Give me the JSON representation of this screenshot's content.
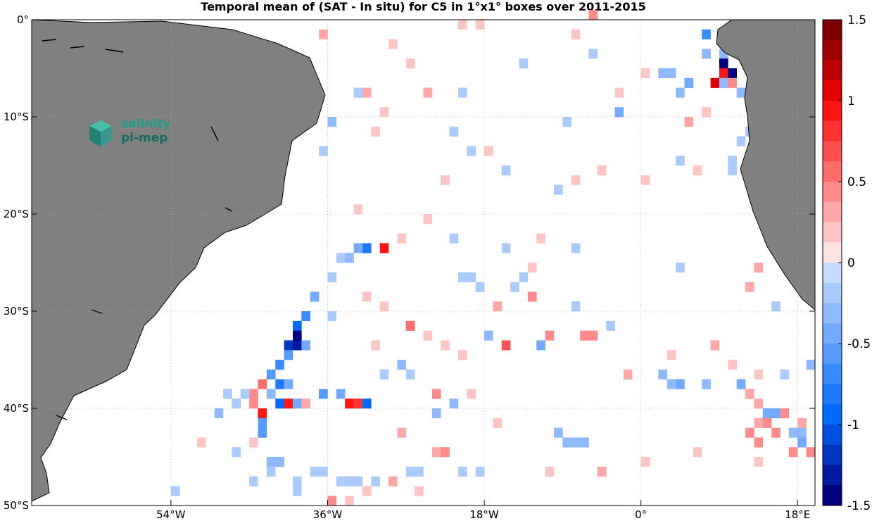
{
  "chart_data": {
    "type": "heatmap",
    "title": "Temporal mean of (SAT - In situ) for C5 in 1°x1° boxes over 2011-2015",
    "projection": "lon-lat",
    "xlim": [
      -70,
      20
    ],
    "ylim": [
      -50,
      0
    ],
    "x_ticks": [
      {
        "value": -54,
        "label": "54°W"
      },
      {
        "value": -36,
        "label": "36°W"
      },
      {
        "value": -18,
        "label": "18°W"
      },
      {
        "value": 0,
        "label": "0°"
      },
      {
        "value": 18,
        "label": "18°E"
      }
    ],
    "y_ticks": [
      {
        "value": 0,
        "label": "0°"
      },
      {
        "value": -10,
        "label": "10°S"
      },
      {
        "value": -20,
        "label": "20°S"
      },
      {
        "value": -30,
        "label": "30°S"
      },
      {
        "value": -40,
        "label": "40°S"
      },
      {
        "value": -50,
        "label": "50°S"
      }
    ],
    "grid": true,
    "colorbar": {
      "range": [
        -1.5,
        1.5
      ],
      "ticks": [
        1.5,
        1,
        0.5,
        0,
        -0.5,
        -1,
        -1.5
      ],
      "tick_labels": [
        "1.5",
        "1",
        "0.5",
        "0",
        "-0.5",
        "-1",
        "-1.5"
      ],
      "placement": "right"
    },
    "colors": {
      "land": "#808080",
      "ocean": "#ffffff",
      "positive_max": "#7f0000",
      "negative_max": "#00007f",
      "grid": "#b0b0b0"
    },
    "cells": [
      {
        "lon": -29.5,
        "lat": -23.5,
        "value": 1.0
      },
      {
        "lon": -31.5,
        "lat": -23.5,
        "value": -0.8
      },
      {
        "lon": -32.5,
        "lat": -23.5,
        "value": -0.4
      },
      {
        "lon": -33.5,
        "lat": -24.5,
        "value": -0.3
      },
      {
        "lon": -34.5,
        "lat": -24.5,
        "value": -0.2
      },
      {
        "lon": -35.5,
        "lat": -26.5,
        "value": -0.25
      },
      {
        "lon": -37.5,
        "lat": -28.5,
        "value": -0.4
      },
      {
        "lon": -35.5,
        "lat": -30.5,
        "value": -0.2
      },
      {
        "lon": -38.5,
        "lat": -30.5,
        "value": -0.7
      },
      {
        "lon": -39.5,
        "lat": -31.5,
        "value": -0.9
      },
      {
        "lon": -39.5,
        "lat": -32.5,
        "value": -1.5
      },
      {
        "lon": -40.5,
        "lat": -33.5,
        "value": -1.2
      },
      {
        "lon": -39.5,
        "lat": -33.5,
        "value": -1.3
      },
      {
        "lon": -38.5,
        "lat": -33.5,
        "value": -0.5
      },
      {
        "lon": -40.5,
        "lat": -34.5,
        "value": -0.6
      },
      {
        "lon": -41.5,
        "lat": -35.5,
        "value": -0.7
      },
      {
        "lon": -42.5,
        "lat": -36.5,
        "value": -0.6
      },
      {
        "lon": -41.5,
        "lat": -37.5,
        "value": -0.8
      },
      {
        "lon": -40.5,
        "lat": -37.5,
        "value": -0.4
      },
      {
        "lon": -43.5,
        "lat": -37.5,
        "value": 0.6
      },
      {
        "lon": -42.5,
        "lat": -38.5,
        "value": -0.3
      },
      {
        "lon": -44.5,
        "lat": -38.5,
        "value": 0.5
      },
      {
        "lon": -44.5,
        "lat": -39.5,
        "value": 0.5
      },
      {
        "lon": -41.5,
        "lat": -39.5,
        "value": -1.0
      },
      {
        "lon": -40.5,
        "lat": -39.5,
        "value": 0.9
      },
      {
        "lon": -39.5,
        "lat": -39.5,
        "value": -0.5
      },
      {
        "lon": -38.5,
        "lat": -39.5,
        "value": 0.3
      },
      {
        "lon": -36.5,
        "lat": -38.5,
        "value": -0.6
      },
      {
        "lon": -34.5,
        "lat": -38.5,
        "value": -0.5
      },
      {
        "lon": -33.5,
        "lat": -39.5,
        "value": 0.9
      },
      {
        "lon": -32.5,
        "lat": -39.5,
        "value": 0.8
      },
      {
        "lon": -31.5,
        "lat": -39.5,
        "value": -0.9
      },
      {
        "lon": -43.5,
        "lat": -40.5,
        "value": 1.0
      },
      {
        "lon": -43.5,
        "lat": -41.5,
        "value": -0.6
      },
      {
        "lon": -43.5,
        "lat": -42.5,
        "value": -0.6
      },
      {
        "lon": -26.5,
        "lat": -31.5,
        "value": 0.6
      },
      {
        "lon": -23.5,
        "lat": -38.5,
        "value": 0.4
      },
      {
        "lon": -21.5,
        "lat": -39.5,
        "value": -0.3
      },
      {
        "lon": -23.5,
        "lat": -40.5,
        "value": -0.3
      },
      {
        "lon": -15.5,
        "lat": -33.5,
        "value": 0.7
      },
      {
        "lon": -12.5,
        "lat": -28.5,
        "value": 0.5
      },
      {
        "lon": -11.5,
        "lat": -33.5,
        "value": -0.5
      },
      {
        "lon": -16.5,
        "lat": -29.5,
        "value": 0.3
      },
      {
        "lon": -10.5,
        "lat": -32.5,
        "value": 0.4
      },
      {
        "lon": -6.5,
        "lat": -32.5,
        "value": 0.5
      },
      {
        "lon": -5.5,
        "lat": -32.5,
        "value": 0.4
      },
      {
        "lon": -17.5,
        "lat": -32.5,
        "value": -0.3
      },
      {
        "lon": -8.5,
        "lat": -43.5,
        "value": -0.3
      },
      {
        "lon": -7.5,
        "lat": -43.5,
        "value": -0.3
      },
      {
        "lon": -6.5,
        "lat": -43.5,
        "value": -0.3
      },
      {
        "lon": -9.5,
        "lat": -42.5,
        "value": -0.3
      },
      {
        "lon": -1.5,
        "lat": -36.5,
        "value": 0.3
      },
      {
        "lon": 2.5,
        "lat": -36.5,
        "value": -0.3
      },
      {
        "lon": 3.5,
        "lat": -37.5,
        "value": -0.3
      },
      {
        "lon": 4.5,
        "lat": -37.5,
        "value": -0.4
      },
      {
        "lon": 7.5,
        "lat": -37.5,
        "value": -0.3
      },
      {
        "lon": 11.5,
        "lat": -37.5,
        "value": -0.5
      },
      {
        "lon": 12.5,
        "lat": -38.5,
        "value": 0.3
      },
      {
        "lon": 13.5,
        "lat": -39.5,
        "value": 0.3
      },
      {
        "lon": 14.5,
        "lat": -40.5,
        "value": -0.4
      },
      {
        "lon": 15.5,
        "lat": -40.5,
        "value": -0.5
      },
      {
        "lon": 16.5,
        "lat": -40.5,
        "value": 0.4
      },
      {
        "lon": 13.5,
        "lat": -41.5,
        "value": 0.3
      },
      {
        "lon": 14.5,
        "lat": -41.5,
        "value": 0.5
      },
      {
        "lon": 15.5,
        "lat": -42.5,
        "value": 0.4
      },
      {
        "lon": 12.5,
        "lat": -42.5,
        "value": 0.5
      },
      {
        "lon": 13.5,
        "lat": -43.5,
        "value": 0.4
      },
      {
        "lon": 17.5,
        "lat": -42.5,
        "value": -0.3
      },
      {
        "lon": 18.5,
        "lat": -43.5,
        "value": -0.5
      },
      {
        "lon": 18.5,
        "lat": -42.5,
        "value": -0.3
      },
      {
        "lon": 17.5,
        "lat": -44.5,
        "value": 0.5
      },
      {
        "lon": 18.5,
        "lat": -41.5,
        "value": 0.3
      },
      {
        "lon": 19.5,
        "lat": -35.5,
        "value": -0.3
      },
      {
        "lon": 7.5,
        "lat": -1.5,
        "value": -0.7
      },
      {
        "lon": 7.5,
        "lat": -3.5,
        "value": -0.3
      },
      {
        "lon": 9.5,
        "lat": -3.5,
        "value": -0.3
      },
      {
        "lon": 9.5,
        "lat": -4.5,
        "value": -1.5
      },
      {
        "lon": 9.5,
        "lat": -5.5,
        "value": 1.0
      },
      {
        "lon": 10.5,
        "lat": -5.5,
        "value": -1.5
      },
      {
        "lon": 8.5,
        "lat": -6.5,
        "value": 1.1
      },
      {
        "lon": 9.5,
        "lat": -6.5,
        "value": -0.3
      },
      {
        "lon": 10.5,
        "lat": -6.5,
        "value": 0.5
      },
      {
        "lon": 5.5,
        "lat": -6.5,
        "value": -0.4
      },
      {
        "lon": 3.5,
        "lat": -5.5,
        "value": -0.3
      },
      {
        "lon": 2.5,
        "lat": -5.5,
        "value": -0.3
      },
      {
        "lon": 4.5,
        "lat": -7.5,
        "value": -0.3
      },
      {
        "lon": 11.5,
        "lat": -7.5,
        "value": -0.3
      },
      {
        "lon": -2.5,
        "lat": -9.5,
        "value": -0.4
      },
      {
        "lon": -35.5,
        "lat": -10.5,
        "value": -0.3
      },
      {
        "lon": -8.5,
        "lat": -10.5,
        "value": -0.2
      },
      {
        "lon": 5.5,
        "lat": -10.5,
        "value": 0.3
      },
      {
        "lon": -29.5,
        "lat": -9.5,
        "value": 0.2
      },
      {
        "lon": 7.5,
        "lat": -9.5,
        "value": 0.2
      },
      {
        "lon": -31.5,
        "lat": -7.5,
        "value": 0.3
      },
      {
        "lon": -24.5,
        "lat": -7.5,
        "value": 0.3
      },
      {
        "lon": -36.5,
        "lat": -1.5,
        "value": 0.3
      },
      {
        "lon": -5.5,
        "lat": 0.5,
        "value": 0.4
      },
      {
        "lon": -7.5,
        "lat": -1.5,
        "value": 0.2
      },
      {
        "lon": -28.5,
        "lat": -2.5,
        "value": 0.2
      },
      {
        "lon": -20.5,
        "lat": -0.5,
        "value": 0.2
      },
      {
        "lon": -18.5,
        "lat": -0.5,
        "value": 0.2
      },
      {
        "lon": -11.5,
        "lat": -22.5,
        "value": 0.2
      },
      {
        "lon": -29.5,
        "lat": -29.5,
        "value": 0.2
      },
      {
        "lon": -19.5,
        "lat": -38.5,
        "value": 0.2
      },
      {
        "lon": -16.5,
        "lat": -41.5,
        "value": 0.2
      },
      {
        "lon": -27.5,
        "lat": -42.5,
        "value": 0.3
      },
      {
        "lon": -23.5,
        "lat": -44.5,
        "value": 0.3
      },
      {
        "lon": -22.5,
        "lat": -44.5,
        "value": 0.4
      },
      {
        "lon": -35.5,
        "lat": -49.5,
        "value": 0.4
      },
      {
        "lon": -28.5,
        "lat": -47.5,
        "value": 0.3
      },
      {
        "lon": -10.5,
        "lat": -46.5,
        "value": 0.2
      },
      {
        "lon": -4.5,
        "lat": -46.5,
        "value": 0.3
      },
      {
        "lon": 0.5,
        "lat": -45.5,
        "value": 0.2
      },
      {
        "lon": 6.5,
        "lat": -44.5,
        "value": 0.2
      },
      {
        "lon": 13.5,
        "lat": -45.5,
        "value": 0.2
      },
      {
        "lon": 19.5,
        "lat": -44.5,
        "value": 0.4
      },
      {
        "lon": -44.5,
        "lat": -43.5,
        "value": 0.2
      },
      {
        "lon": -50.5,
        "lat": -43.5,
        "value": 0.2
      },
      {
        "lon": -48.5,
        "lat": -40.5,
        "value": -0.3
      },
      {
        "lon": -47.5,
        "lat": -38.5,
        "value": -0.2
      },
      {
        "lon": -46.5,
        "lat": -39.5,
        "value": -0.2
      },
      {
        "lon": -45.5,
        "lat": -38.5,
        "value": -0.2
      },
      {
        "lon": -46.5,
        "lat": -44.5,
        "value": -0.2
      },
      {
        "lon": -42.5,
        "lat": -45.5,
        "value": -0.3
      },
      {
        "lon": -41.5,
        "lat": -45.5,
        "value": -0.3
      },
      {
        "lon": -42.5,
        "lat": -46.5,
        "value": -0.2
      },
      {
        "lon": -39.5,
        "lat": -47.5,
        "value": -0.2
      },
      {
        "lon": -36.5,
        "lat": -46.5,
        "value": -0.2
      },
      {
        "lon": -34.5,
        "lat": -47.5,
        "value": -0.2
      },
      {
        "lon": -33.5,
        "lat": -47.5,
        "value": -0.2
      },
      {
        "lon": -32.5,
        "lat": -47.5,
        "value": -0.2
      },
      {
        "lon": -30.5,
        "lat": -47.5,
        "value": -0.2
      },
      {
        "lon": -26.5,
        "lat": -46.5,
        "value": -0.2
      },
      {
        "lon": -25.5,
        "lat": -46.5,
        "value": -0.2
      },
      {
        "lon": -20.5,
        "lat": -46.5,
        "value": -0.2
      },
      {
        "lon": -18.5,
        "lat": -46.5,
        "value": -0.2
      },
      {
        "lon": -53.5,
        "lat": -48.5,
        "value": -0.2
      },
      {
        "lon": -33.5,
        "lat": -49.5,
        "value": 0.2
      },
      {
        "lon": -31.5,
        "lat": -48.5,
        "value": 0.2
      },
      {
        "lon": -25.5,
        "lat": -48.5,
        "value": 0.2
      },
      {
        "lon": -39.5,
        "lat": -48.5,
        "value": -0.2
      },
      {
        "lon": -37.5,
        "lat": -46.5,
        "value": -0.2
      },
      {
        "lon": -44.5,
        "lat": -47.5,
        "value": -0.2
      },
      {
        "lon": -27.5,
        "lat": -35.5,
        "value": -0.3
      },
      {
        "lon": -29.5,
        "lat": -36.5,
        "value": -0.2
      },
      {
        "lon": -26.5,
        "lat": -36.5,
        "value": -0.2
      },
      {
        "lon": -30.5,
        "lat": -33.5,
        "value": 0.2
      },
      {
        "lon": -22.5,
        "lat": -33.5,
        "value": 0.2
      },
      {
        "lon": -20.5,
        "lat": -34.5,
        "value": 0.2
      },
      {
        "lon": -24.5,
        "lat": -32.5,
        "value": 0.2
      },
      {
        "lon": -31.5,
        "lat": -28.5,
        "value": 0.2
      },
      {
        "lon": -20.5,
        "lat": -26.5,
        "value": -0.2
      },
      {
        "lon": -19.5,
        "lat": -26.5,
        "value": -0.2
      },
      {
        "lon": -18.5,
        "lat": -27.5,
        "value": -0.2
      },
      {
        "lon": -14.5,
        "lat": -27.5,
        "value": -0.2
      },
      {
        "lon": -13.5,
        "lat": -26.5,
        "value": -0.2
      },
      {
        "lon": -12.5,
        "lat": -25.5,
        "value": 0.2
      },
      {
        "lon": -7.5,
        "lat": -29.5,
        "value": -0.2
      },
      {
        "lon": -3.5,
        "lat": -31.5,
        "value": -0.2
      },
      {
        "lon": 3.5,
        "lat": -34.5,
        "value": 0.2
      },
      {
        "lon": 8.5,
        "lat": -33.5,
        "value": 0.3
      },
      {
        "lon": 10.5,
        "lat": -35.5,
        "value": 0.2
      },
      {
        "lon": 13.5,
        "lat": -36.5,
        "value": 0.2
      },
      {
        "lon": 16.5,
        "lat": -36.5,
        "value": -0.2
      },
      {
        "lon": 12.5,
        "lat": -27.5,
        "value": 0.3
      },
      {
        "lon": 13.5,
        "lat": -25.5,
        "value": 0.3
      },
      {
        "lon": 15.5,
        "lat": -29.5,
        "value": -0.2
      },
      {
        "lon": 4.5,
        "lat": -25.5,
        "value": -0.2
      },
      {
        "lon": -24.5,
        "lat": -20.5,
        "value": 0.2
      },
      {
        "lon": -27.5,
        "lat": -22.5,
        "value": 0.2
      },
      {
        "lon": -21.5,
        "lat": -22.5,
        "value": -0.2
      },
      {
        "lon": -15.5,
        "lat": -23.5,
        "value": -0.2
      },
      {
        "lon": -7.5,
        "lat": -23.5,
        "value": -0.2
      },
      {
        "lon": -22.5,
        "lat": -16.5,
        "value": 0.2
      },
      {
        "lon": -9.5,
        "lat": -17.5,
        "value": -0.2
      },
      {
        "lon": -7.5,
        "lat": -16.5,
        "value": 0.2
      },
      {
        "lon": -4.5,
        "lat": -15.5,
        "value": 0.2
      },
      {
        "lon": 0.5,
        "lat": -16.5,
        "value": 0.2
      },
      {
        "lon": -19.5,
        "lat": -13.5,
        "value": -0.2
      },
      {
        "lon": -17.5,
        "lat": -13.5,
        "value": 0.2
      },
      {
        "lon": -32.5,
        "lat": -19.5,
        "value": 0.2
      },
      {
        "lon": -36.5,
        "lat": -13.5,
        "value": -0.2
      },
      {
        "lon": -15.5,
        "lat": -15.5,
        "value": -0.2
      },
      {
        "lon": 4.5,
        "lat": -14.5,
        "value": -0.2
      },
      {
        "lon": 6.5,
        "lat": -15.5,
        "value": 0.2
      },
      {
        "lon": 12.5,
        "lat": -11.5,
        "value": -0.2
      },
      {
        "lon": 11.5,
        "lat": -12.5,
        "value": -0.2
      },
      {
        "lon": 10.5,
        "lat": -14.5,
        "value": -0.2
      },
      {
        "lon": 10.5,
        "lat": -15.5,
        "value": -0.2
      },
      {
        "lon": -21.5,
        "lat": -11.5,
        "value": -0.2
      },
      {
        "lon": -30.5,
        "lat": -11.5,
        "value": 0.2
      },
      {
        "lon": -32.5,
        "lat": -7.5,
        "value": -0.2
      },
      {
        "lon": -26.5,
        "lat": -4.5,
        "value": 0.2
      },
      {
        "lon": -20.5,
        "lat": -7.5,
        "value": -0.2
      },
      {
        "lon": -13.5,
        "lat": -4.5,
        "value": -0.2
      },
      {
        "lon": -5.5,
        "lat": -3.5,
        "value": -0.2
      },
      {
        "lon": 0.5,
        "lat": -5.5,
        "value": 0.2
      },
      {
        "lon": -2.5,
        "lat": -7.5,
        "value": 0.2
      }
    ]
  },
  "logo": {
    "line1": "salinity",
    "line2": "pi-mep"
  }
}
